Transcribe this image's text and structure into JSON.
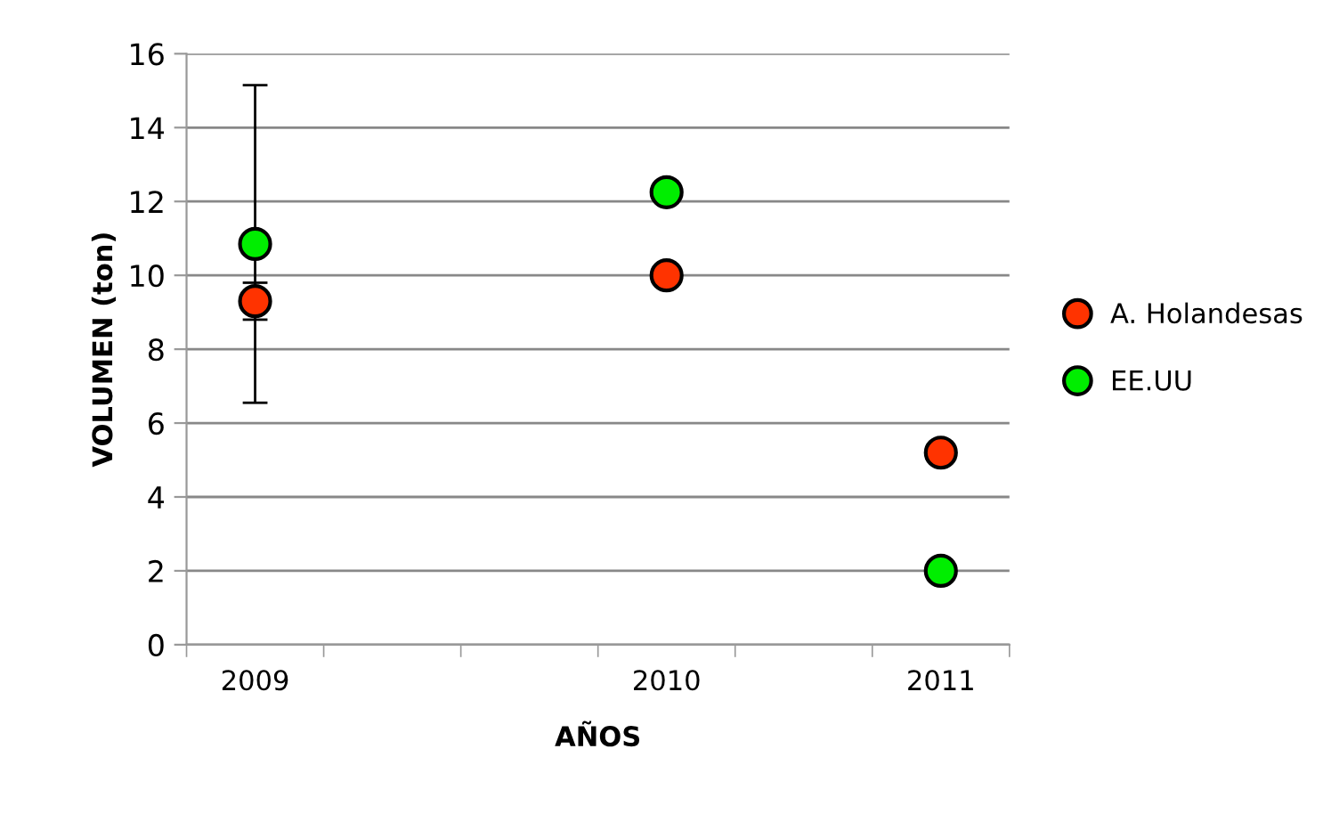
{
  "chart_data": {
    "type": "scatter",
    "xlabel": "AÑOS",
    "ylabel": "VOLUMEN (ton)",
    "categories": [
      "2009",
      null,
      null,
      "2010",
      null,
      "2011"
    ],
    "series": [
      {
        "name": "A. Holandesas",
        "color": "#ff3300",
        "values": [
          9.3,
          null,
          null,
          10.0,
          null,
          5.2
        ],
        "errors": [
          0.5,
          null,
          null,
          null,
          null,
          null
        ]
      },
      {
        "name": "EE.UU",
        "color": "#00ee00",
        "values": [
          10.85,
          null,
          null,
          12.25,
          null,
          2.0
        ],
        "errors": [
          4.3,
          null,
          null,
          null,
          null,
          null
        ]
      }
    ],
    "ylim": [
      0,
      16
    ],
    "yticks": [
      0,
      2,
      4,
      6,
      8,
      10,
      12,
      14,
      16
    ],
    "grid": "y",
    "legend": "right",
    "marker": "circle"
  }
}
